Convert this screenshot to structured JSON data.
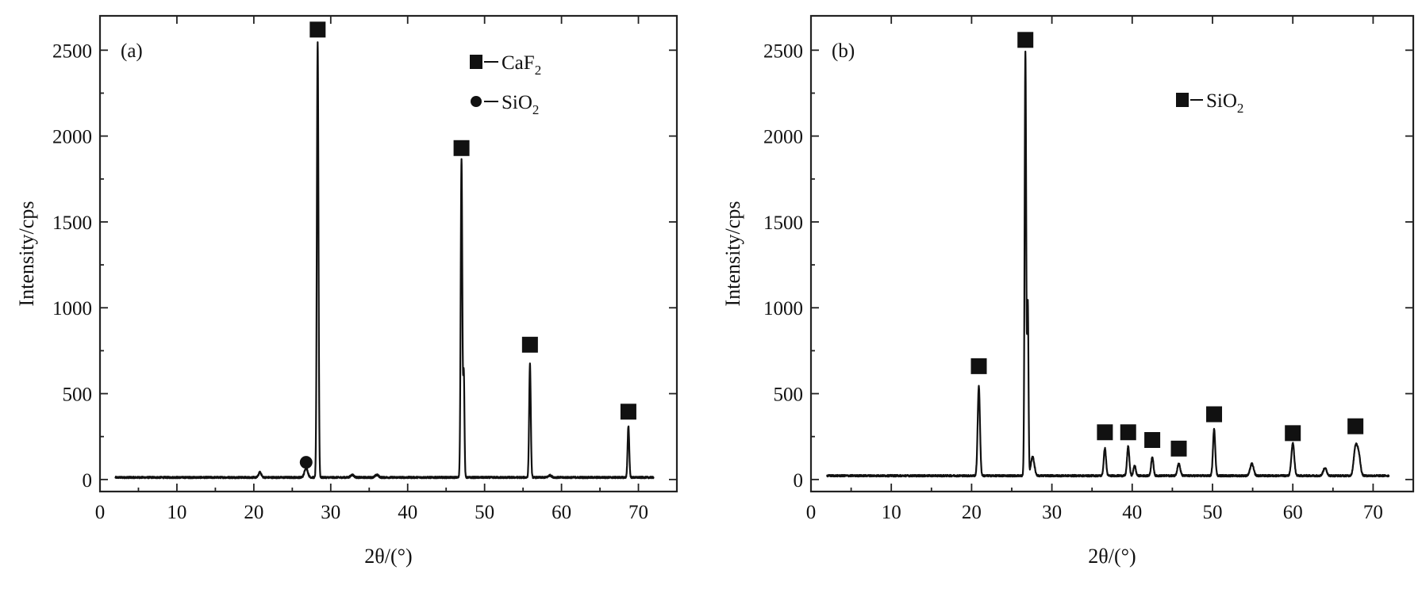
{
  "chart_data": [
    {
      "type": "line",
      "panel_label": "(a)",
      "xlabel": "2θ/(°)",
      "ylabel": "Intensity/cps",
      "xlim": [
        0,
        75
      ],
      "ylim": [
        -70,
        2700
      ],
      "xticks": [
        0,
        10,
        20,
        30,
        40,
        50,
        60,
        70
      ],
      "yticks": [
        0,
        500,
        1000,
        1500,
        2000,
        2500
      ],
      "legend": [
        {
          "marker": "square",
          "label_main": "CaF",
          "label_sub": "2"
        },
        {
          "marker": "circle",
          "label_main": "SiO",
          "label_sub": "2"
        }
      ],
      "series": [
        {
          "baseline": 12,
          "peaks": [
            {
              "x": 20.8,
              "height": 30,
              "width": 0.25
            },
            {
              "x": 26.8,
              "height": 55,
              "width": 0.3
            },
            {
              "x": 28.3,
              "height": 2530,
              "width": 0.15
            },
            {
              "x": 32.8,
              "height": 15,
              "width": 0.3
            },
            {
              "x": 36.0,
              "height": 15,
              "width": 0.3
            },
            {
              "x": 47.0,
              "height": 1850,
              "width": 0.15
            },
            {
              "x": 47.3,
              "height": 600,
              "width": 0.12
            },
            {
              "x": 55.9,
              "height": 660,
              "width": 0.15
            },
            {
              "x": 58.5,
              "height": 12,
              "width": 0.3
            },
            {
              "x": 68.7,
              "height": 300,
              "width": 0.15
            }
          ],
          "x_range": [
            2,
            72
          ]
        }
      ],
      "markers": [
        {
          "type": "square",
          "x": 28.3,
          "y": 2620
        },
        {
          "type": "square",
          "x": 47.0,
          "y": 1930
        },
        {
          "type": "square",
          "x": 55.9,
          "y": 785
        },
        {
          "type": "square",
          "x": 68.7,
          "y": 395
        },
        {
          "type": "circle",
          "x": 26.8,
          "y": 100
        }
      ]
    },
    {
      "type": "line",
      "panel_label": "(b)",
      "xlabel": "2θ/(°)",
      "ylabel": "Intensity/cps",
      "xlim": [
        0,
        75
      ],
      "ylim": [
        -70,
        2700
      ],
      "xticks": [
        0,
        10,
        20,
        30,
        40,
        50,
        60,
        70
      ],
      "yticks": [
        0,
        500,
        1000,
        1500,
        2000,
        2500
      ],
      "legend": [
        {
          "marker": "square",
          "label_main": "SiO",
          "label_sub": "2"
        }
      ],
      "series": [
        {
          "baseline": 22,
          "peaks": [
            {
              "x": 20.9,
              "height": 520,
              "width": 0.2
            },
            {
              "x": 26.7,
              "height": 2470,
              "width": 0.14
            },
            {
              "x": 27.0,
              "height": 1000,
              "width": 0.12
            },
            {
              "x": 27.6,
              "height": 110,
              "width": 0.3
            },
            {
              "x": 36.6,
              "height": 160,
              "width": 0.2
            },
            {
              "x": 39.5,
              "height": 170,
              "width": 0.2
            },
            {
              "x": 40.3,
              "height": 60,
              "width": 0.2
            },
            {
              "x": 42.5,
              "height": 110,
              "width": 0.2
            },
            {
              "x": 45.8,
              "height": 70,
              "width": 0.25
            },
            {
              "x": 50.2,
              "height": 270,
              "width": 0.2
            },
            {
              "x": 54.9,
              "height": 70,
              "width": 0.3
            },
            {
              "x": 60.0,
              "height": 190,
              "width": 0.25
            },
            {
              "x": 64.0,
              "height": 45,
              "width": 0.3
            },
            {
              "x": 67.8,
              "height": 160,
              "width": 0.3
            },
            {
              "x": 68.2,
              "height": 120,
              "width": 0.3
            }
          ],
          "x_range": [
            2,
            72
          ]
        }
      ],
      "markers": [
        {
          "type": "square",
          "x": 20.9,
          "y": 660
        },
        {
          "type": "square",
          "x": 26.7,
          "y": 2560
        },
        {
          "type": "square",
          "x": 36.6,
          "y": 275
        },
        {
          "type": "square",
          "x": 39.5,
          "y": 275
        },
        {
          "type": "square",
          "x": 42.5,
          "y": 230
        },
        {
          "type": "square",
          "x": 45.8,
          "y": 180
        },
        {
          "type": "square",
          "x": 50.2,
          "y": 380
        },
        {
          "type": "square",
          "x": 60.0,
          "y": 270
        },
        {
          "type": "square",
          "x": 67.8,
          "y": 310
        }
      ]
    }
  ]
}
